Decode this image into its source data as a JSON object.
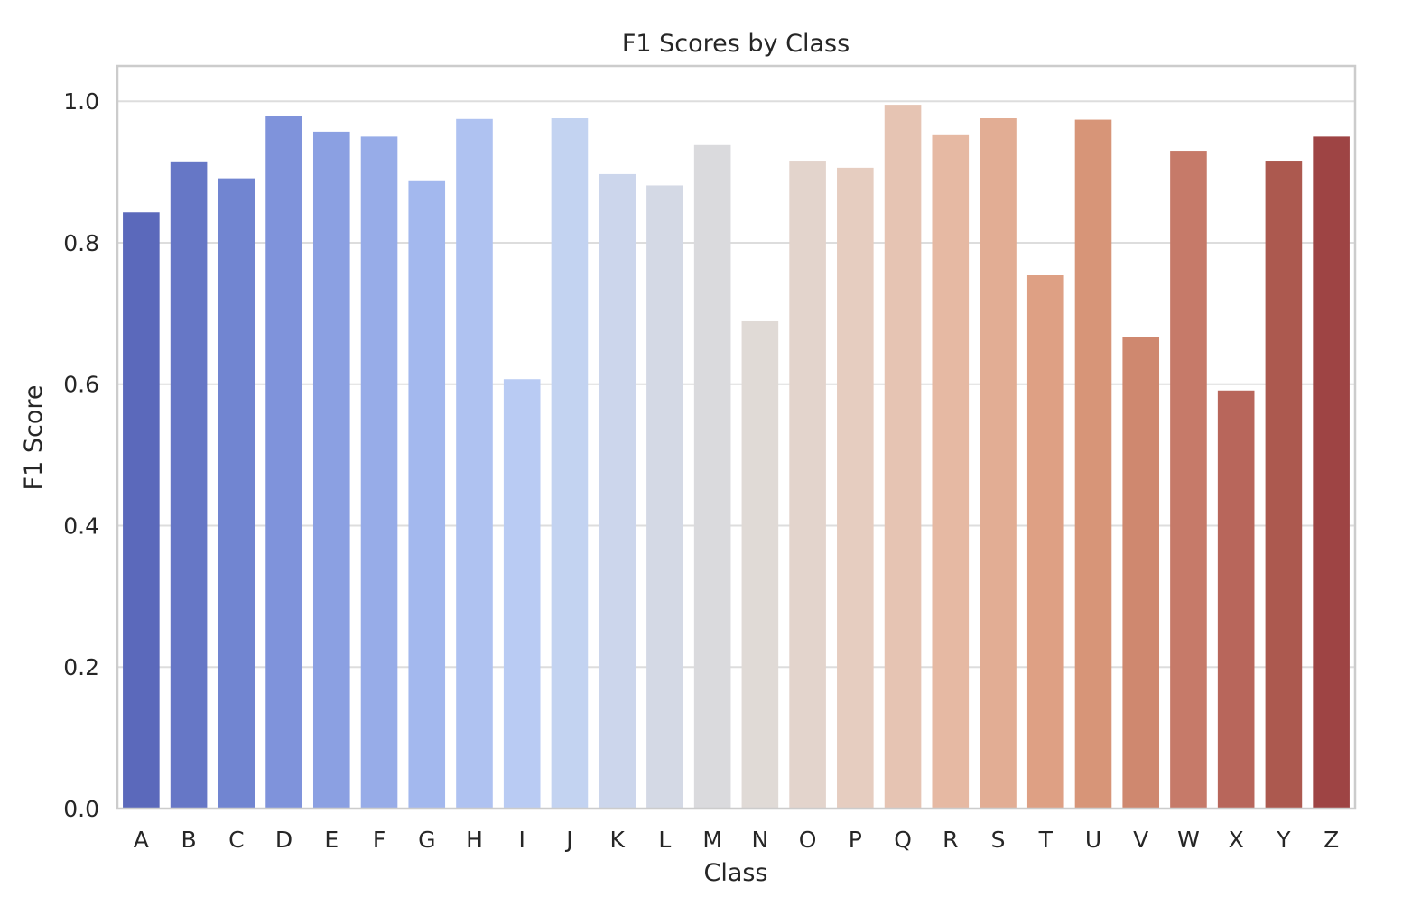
{
  "chart_data": {
    "type": "bar",
    "title": "F1 Scores by Class",
    "xlabel": "Class",
    "ylabel": "F1 Score",
    "ylim": [
      0,
      1.05
    ],
    "yticks": [
      "0.0",
      "0.2",
      "0.4",
      "0.6",
      "0.8",
      "1.0"
    ],
    "grid": "horizontal",
    "legend": "none",
    "palette": "coolwarm",
    "categories": [
      "A",
      "B",
      "C",
      "D",
      "E",
      "F",
      "G",
      "H",
      "I",
      "J",
      "K",
      "L",
      "M",
      "N",
      "O",
      "P",
      "Q",
      "R",
      "S",
      "T",
      "U",
      "V",
      "W",
      "X",
      "Y",
      "Z"
    ],
    "values": [
      0.843,
      0.915,
      0.891,
      0.979,
      0.957,
      0.95,
      0.887,
      0.975,
      0.607,
      0.976,
      0.897,
      0.881,
      0.938,
      0.689,
      0.916,
      0.906,
      0.995,
      0.952,
      0.976,
      0.754,
      0.974,
      0.667,
      0.93,
      0.591,
      0.916,
      0.95
    ],
    "colors": [
      "#5b69bb",
      "#6677c6",
      "#7185d1",
      "#7f93db",
      "#8ba0e2",
      "#97ace8",
      "#a3b8ee",
      "#afc2f1",
      "#b9cbf3",
      "#c3d3f1",
      "#ccd6ec",
      "#d4d9e5",
      "#dadadd",
      "#e0dad6",
      "#e3d4cc",
      "#e6cdc0",
      "#e6c4b3",
      "#e6b9a3",
      "#e2ad94",
      "#dea084",
      "#d79578",
      "#cf886f",
      "#c67a69",
      "#b8665b",
      "#ac594f",
      "#9e4444"
    ]
  }
}
